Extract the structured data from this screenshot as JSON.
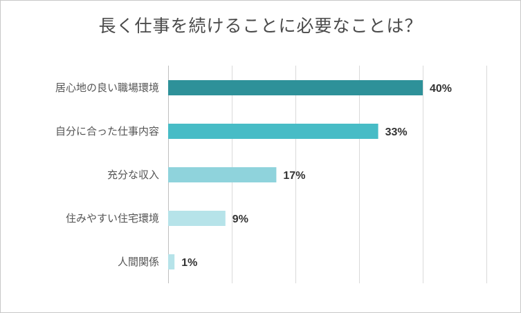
{
  "chart_data": {
    "type": "bar",
    "orientation": "horizontal",
    "title": "長く仕事を続けることに必要なことは？",
    "categories": [
      "居心地の良い職場環境",
      "自分に合った仕事内容",
      "充分な収入",
      "住みやすい住宅環境",
      "人間関係"
    ],
    "values": [
      40,
      33,
      17,
      9,
      1
    ],
    "value_labels": [
      "40%",
      "33%",
      "17%",
      "9%",
      "1%"
    ],
    "bar_colors": [
      "#2e9199",
      "#47bcc6",
      "#8fd3dc",
      "#b6e3e9",
      "#b6e3e9"
    ],
    "xlim": [
      0,
      50
    ],
    "grid": true,
    "legend": "none",
    "xlabel": "",
    "ylabel": ""
  }
}
